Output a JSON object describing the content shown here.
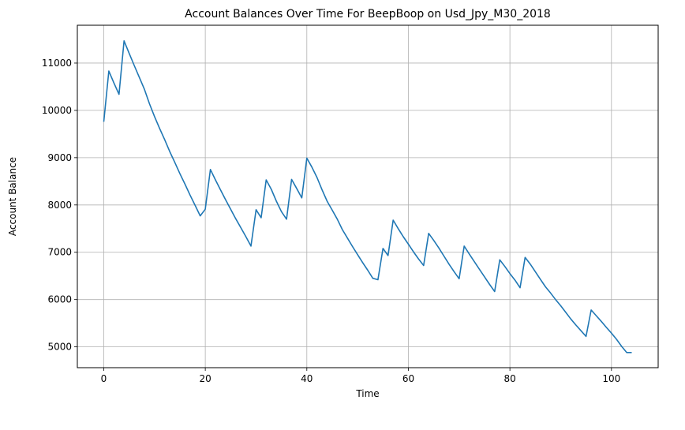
{
  "chart_data": {
    "type": "line",
    "title": "Account Balances Over Time For BeepBoop on Usd_Jpy_M30_2018",
    "xlabel": "Time",
    "ylabel": "Account Balance",
    "xlim": [
      -5.2,
      109.2
    ],
    "ylim": [
      4560,
      11800
    ],
    "xticks": [
      0,
      20,
      40,
      60,
      80,
      100
    ],
    "yticks": [
      5000,
      6000,
      7000,
      8000,
      9000,
      10000,
      11000
    ],
    "grid": true,
    "line_color": "#1f77b4",
    "series": [
      {
        "x": [
          0,
          1,
          2,
          3,
          4,
          5,
          6,
          7,
          8,
          9,
          10,
          11,
          12,
          13,
          14,
          15,
          16,
          17,
          18,
          19,
          20,
          21,
          22,
          23,
          24,
          25,
          26,
          27,
          28,
          29,
          30,
          31,
          32,
          33,
          34,
          35,
          36,
          37,
          38,
          39,
          40,
          41,
          42,
          43,
          44,
          45,
          46,
          47,
          48,
          49,
          50,
          51,
          52,
          53,
          54,
          55,
          56,
          57,
          58,
          59,
          60,
          61,
          62,
          63,
          64,
          65,
          66,
          67,
          68,
          69,
          70,
          71,
          72,
          73,
          74,
          75,
          76,
          77,
          78,
          79,
          80,
          81,
          82,
          83,
          84,
          85,
          86,
          87,
          88,
          89,
          90,
          91,
          92,
          93,
          94,
          95,
          96,
          97,
          98,
          99,
          100,
          101,
          102,
          103,
          104
        ],
        "y": [
          9760,
          10830,
          10580,
          10340,
          11470,
          11210,
          10950,
          10700,
          10450,
          10140,
          9870,
          9620,
          9380,
          9130,
          8900,
          8660,
          8440,
          8210,
          7990,
          7770,
          7910,
          8750,
          8530,
          8320,
          8110,
          7910,
          7710,
          7520,
          7330,
          7130,
          7900,
          7730,
          8530,
          8330,
          8080,
          7860,
          7700,
          8540,
          8350,
          8150,
          8990,
          8800,
          8580,
          8320,
          8080,
          7890,
          7700,
          7480,
          7300,
          7120,
          6950,
          6780,
          6620,
          6450,
          6420,
          7080,
          6930,
          7680,
          7500,
          7330,
          7170,
          7010,
          6860,
          6720,
          7400,
          7250,
          7090,
          6920,
          6750,
          6590,
          6440,
          7130,
          6960,
          6800,
          6640,
          6480,
          6320,
          6170,
          6840,
          6700,
          6550,
          6410,
          6250,
          6890,
          6750,
          6590,
          6430,
          6270,
          6140,
          6000,
          5870,
          5730,
          5590,
          5460,
          5340,
          5220,
          5780,
          5660,
          5540,
          5410,
          5290,
          5160,
          5010,
          4880,
          4880
        ]
      }
    ]
  }
}
